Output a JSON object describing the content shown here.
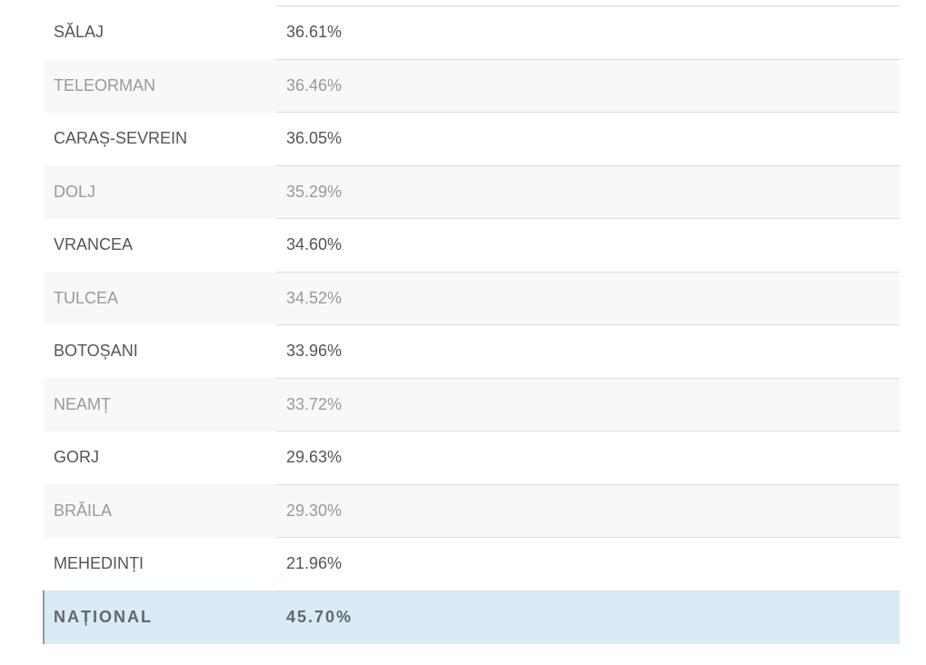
{
  "table": {
    "rows": [
      [
        "SĂLAJ",
        "36.61%"
      ],
      [
        "TELEORMAN",
        "36.46%"
      ],
      [
        "CARAȘ-SEVREIN",
        "36.05%"
      ],
      [
        "DOLJ",
        "35.29%"
      ],
      [
        "VRANCEA",
        "34.60%"
      ],
      [
        "TULCEA",
        "34.52%"
      ],
      [
        "BOTOȘANI",
        "33.96%"
      ],
      [
        "NEAMȚ",
        "33.72%"
      ],
      [
        "GORJ",
        "29.63%"
      ],
      [
        "BRĂILA",
        "29.30%"
      ],
      [
        "MEHEDINȚI",
        "21.96%"
      ]
    ],
    "total": [
      "NAȚIONAL",
      "45.70%"
    ]
  }
}
